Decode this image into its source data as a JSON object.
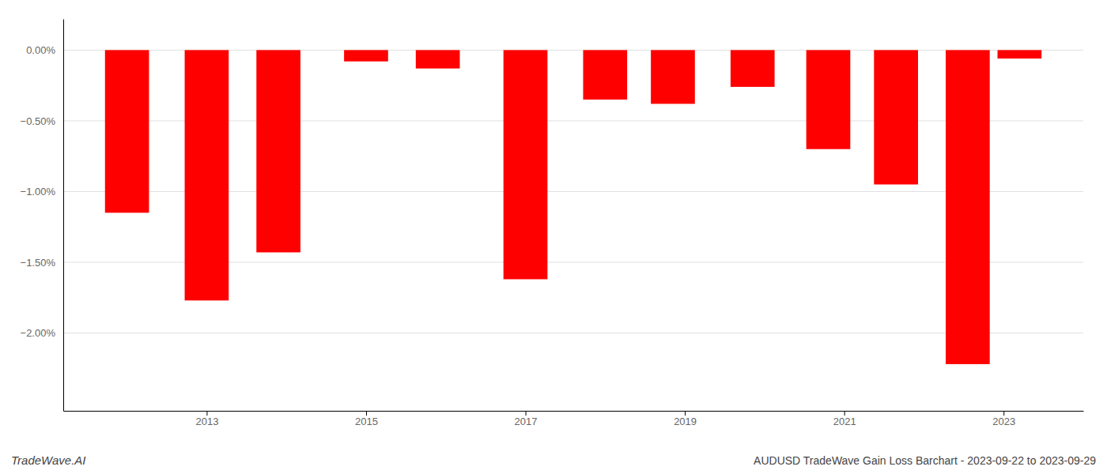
{
  "chart_data": {
    "type": "bar",
    "x": [
      2012,
      2013,
      2013.9,
      2015,
      2015.9,
      2017,
      2018,
      2018.85,
      2019.85,
      2020.8,
      2021.65,
      2022.55,
      2023.2
    ],
    "values": [
      -1.15,
      -1.77,
      -1.43,
      -0.08,
      -0.13,
      -1.62,
      -0.35,
      -0.38,
      -0.26,
      -0.7,
      -0.95,
      -2.22,
      -0.06
    ],
    "color": "#ff0000",
    "xlim": [
      2011.2,
      2024.0
    ],
    "xticks": [
      2013,
      2015,
      2017,
      2019,
      2021,
      2023
    ],
    "ylim": [
      -2.55,
      0.22
    ],
    "yticks": [
      {
        "value": 0.0,
        "label": "0.00%"
      },
      {
        "value": -0.5,
        "label": "−0.50%"
      },
      {
        "value": -1.0,
        "label": "−1.00%"
      },
      {
        "value": -1.5,
        "label": "−1.50%"
      },
      {
        "value": -2.0,
        "label": "−2.00%"
      }
    ],
    "grid": true,
    "annotations": [
      "TradeWave.AI",
      "AUDUSD TradeWave Gain Loss Barchart - 2023-09-22 to 2023-09-29"
    ]
  }
}
